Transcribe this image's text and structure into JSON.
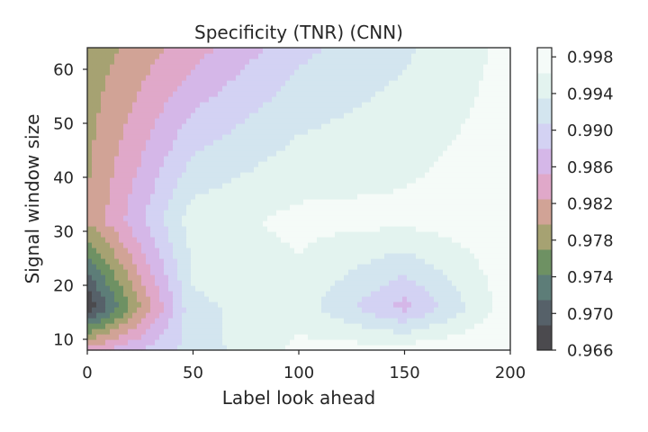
{
  "chart_data": {
    "type": "heatmap",
    "title": "Specificity (TNR) (CNN)",
    "xlabel": "Label look ahead",
    "ylabel": "Signal window size",
    "xlim": [
      0,
      200
    ],
    "ylim": [
      8,
      64
    ],
    "x_ticks": [
      0,
      50,
      100,
      150,
      200
    ],
    "y_ticks": [
      10,
      20,
      30,
      40,
      50,
      60
    ],
    "x": [
      0,
      50,
      100,
      150,
      200
    ],
    "y": [
      8,
      16,
      32,
      64
    ],
    "z": [
      [
        0.984,
        0.992,
        0.997,
        0.998,
        0.999
      ],
      [
        0.966,
        0.993,
        0.995,
        0.987,
        0.998
      ],
      [
        0.98,
        0.995,
        0.997,
        0.997,
        0.998
      ],
      [
        0.978,
        0.984,
        0.99,
        0.993,
        0.997
      ]
    ],
    "colorbar": {
      "ticks": [
        "0.966",
        "0.970",
        "0.974",
        "0.978",
        "0.982",
        "0.986",
        "0.990",
        "0.994",
        "0.998"
      ],
      "min": 0.966,
      "max": 0.999,
      "colors": [
        "#4b4a4e",
        "#566169",
        "#5d7d78",
        "#6e9163",
        "#a6a272",
        "#d1a396",
        "#e0a8c9",
        "#d5b7e8",
        "#d3d2f3",
        "#d3e5ef",
        "#e3f3ef",
        "#f5fbf8"
      ]
    },
    "grid": false
  }
}
